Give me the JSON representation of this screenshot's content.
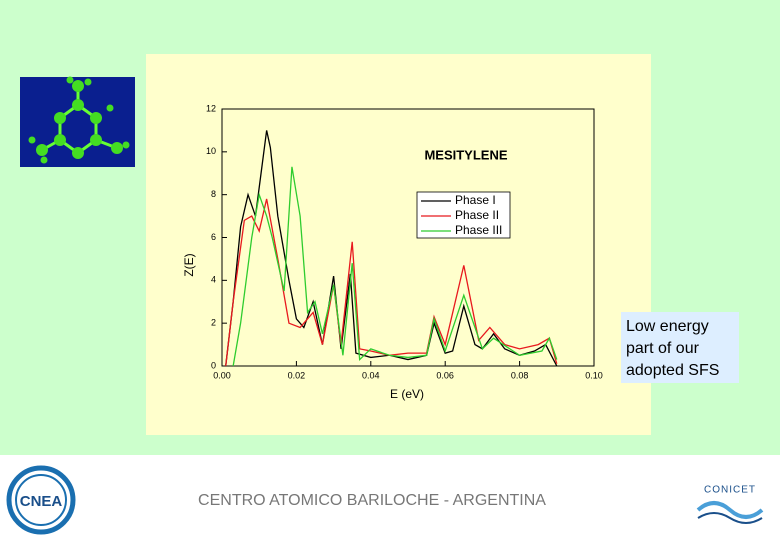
{
  "chart_data": {
    "type": "line",
    "title": "MESITYLENE",
    "x_label": "E (eV)",
    "y_label": "Z(E)",
    "xlim": [
      0,
      0.1
    ],
    "xticks": [
      {
        "value": 0,
        "label": "0.00"
      },
      {
        "value": 0.02,
        "label": "0.02"
      },
      {
        "value": 0.04,
        "label": "0.04"
      },
      {
        "value": 0.06,
        "label": "0.06"
      },
      {
        "value": 0.08,
        "label": "0.08"
      },
      {
        "value": 0.1,
        "label": "0.10"
      }
    ],
    "ylim": [
      0,
      12
    ],
    "yticks": [
      0,
      2,
      4,
      6,
      8,
      10,
      12
    ],
    "legend": "upper right",
    "series": [
      {
        "name": "Phase I",
        "color": "#000000",
        "x": [
          0.001,
          0.003,
          0.005,
          0.007,
          0.009,
          0.0105,
          0.012,
          0.013,
          0.015,
          0.016,
          0.018,
          0.02,
          0.022,
          0.0245,
          0.027,
          0.03,
          0.032,
          0.0345,
          0.036,
          0.04,
          0.045,
          0.05,
          0.055,
          0.057,
          0.06,
          0.062,
          0.065,
          0.068,
          0.07,
          0.073,
          0.076,
          0.08,
          0.084,
          0.087,
          0.09
        ],
        "values": [
          0,
          3,
          6.5,
          8,
          7,
          9,
          11,
          10.2,
          7,
          6,
          4,
          2.2,
          1.8,
          3,
          1,
          4.2,
          0.8,
          4.3,
          0.6,
          0.4,
          0.5,
          0.3,
          0.5,
          2,
          0.6,
          0.7,
          2.8,
          1,
          0.8,
          1.5,
          0.8,
          0.5,
          0.7,
          1,
          0
        ]
      },
      {
        "name": "Phase II",
        "color": "#e8191e",
        "x": [
          0.001,
          0.003,
          0.006,
          0.008,
          0.01,
          0.012,
          0.015,
          0.018,
          0.021,
          0.0245,
          0.027,
          0.03,
          0.032,
          0.035,
          0.037,
          0.04,
          0.045,
          0.05,
          0.055,
          0.057,
          0.06,
          0.065,
          0.069,
          0.072,
          0.076,
          0.08,
          0.085,
          0.088,
          0.09
        ],
        "values": [
          0,
          3,
          6.8,
          7,
          6.3,
          7.8,
          5,
          2,
          1.8,
          2.5,
          1,
          3.8,
          1,
          5.8,
          0.8,
          0.7,
          0.5,
          0.6,
          0.6,
          2.3,
          1,
          4.7,
          1.2,
          1.8,
          1,
          0.8,
          1,
          1.3,
          0.1
        ]
      },
      {
        "name": "Phase III",
        "color": "#2ecc2e",
        "x": [
          0.003,
          0.005,
          0.008,
          0.01,
          0.012,
          0.0135,
          0.0167,
          0.0188,
          0.021,
          0.023,
          0.025,
          0.027,
          0.03,
          0.0325,
          0.035,
          0.037,
          0.04,
          0.045,
          0.05,
          0.055,
          0.057,
          0.06,
          0.065,
          0.07,
          0.073,
          0.08,
          0.086,
          0.088,
          0.09
        ],
        "values": [
          0,
          2,
          6,
          8,
          7,
          6,
          3.5,
          9.3,
          7,
          2.5,
          3,
          1.5,
          3.8,
          0.5,
          4.8,
          0.3,
          0.8,
          0.5,
          0.4,
          0.5,
          2.2,
          0.7,
          3.3,
          0.8,
          1.3,
          0.5,
          0.7,
          1.3,
          0.3
        ]
      }
    ]
  },
  "caption": [
    "Low energy",
    "part of our",
    "adopted SFS"
  ],
  "footer": "CENTRO ATOMICO BARILOCHE - ARGENTINA",
  "logos": {
    "left": "CNEA",
    "right": "CONICET"
  }
}
